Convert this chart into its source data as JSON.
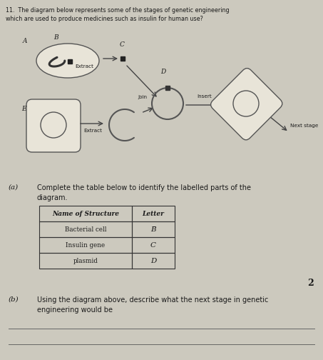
{
  "background_color": "#ccc9be",
  "title_line1": "11.  The diagram below represents some of the stages of genetic engineering",
  "title_line2": "which are used to produce medicines such as insulin for human use?",
  "table_headers": [
    "Name of Structure",
    "Letter"
  ],
  "table_rows": [
    [
      "Bacterial cell",
      "B̅"
    ],
    [
      "Insulin gene",
      "C"
    ],
    [
      "plasmid",
      "D"
    ]
  ],
  "mark": "2",
  "text_color": "#1a1a1a",
  "table_line_color": "#333333",
  "diagram_bg": "#dedad0",
  "shape_edge": "#555555",
  "shape_face": "#e8e4d8"
}
